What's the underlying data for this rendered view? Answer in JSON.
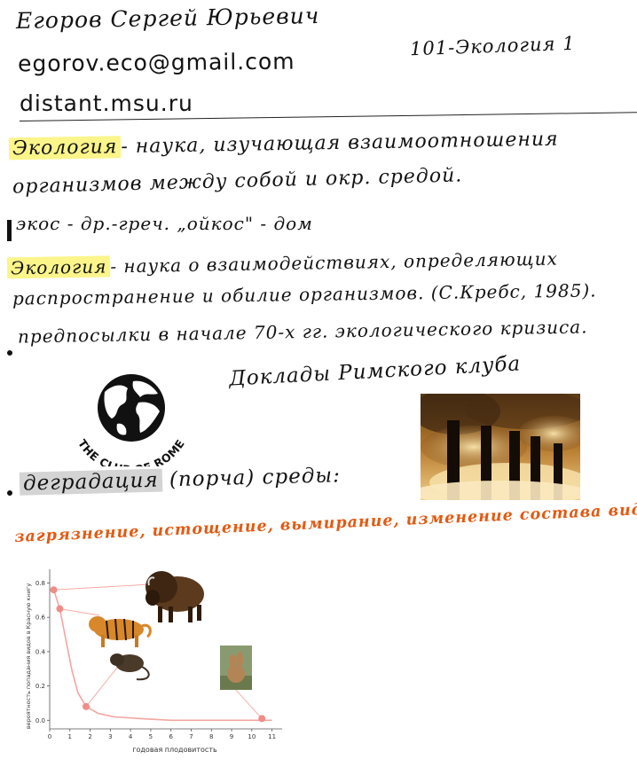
{
  "header": {
    "author": "Егоров Сергей Юрьевич",
    "email": "egorov.eco@gmail.com",
    "site": "distant.msu.ru",
    "course": "101-Экология 1"
  },
  "notes": {
    "term1": "Экология",
    "def1_line1": "- наука, изучающая взаимоотношения",
    "def1_line2": "организмов между собой и окр. средой.",
    "etymology": "экос - др.-греч. „ойкос\" - дом",
    "term2": "Экология",
    "def2_line1": "- наука о взаимодействиях, определяющих",
    "def2_line2": "распространение и обилие организмов. (С.Кребс, 1985).",
    "bullet1": "предпосылки в начале 70-х гг. экологического кризиса.",
    "report": "Доклады Римского клуба",
    "term3": "деградация",
    "term3_paren": "(порча) среды:",
    "causes": "загрязнение, истощение, вымирание, изменение состава видов"
  },
  "logo": {
    "text": "THE CLUB OF ROME"
  },
  "chart_data": {
    "type": "scatter",
    "title": "",
    "xlabel": "годовая плодовитость",
    "ylabel": "вероятность попадания видов в Красную книгу",
    "xlim": [
      0,
      11.5
    ],
    "ylim": [
      -0.05,
      0.88
    ],
    "xticks": [
      0,
      1,
      2,
      3,
      4,
      5,
      6,
      7,
      8,
      9,
      10,
      11
    ],
    "yticks": [
      0.0,
      0.2,
      0.4,
      0.6,
      0.8
    ],
    "points": [
      {
        "x": 0.2,
        "y": 0.76
      },
      {
        "x": 0.5,
        "y": 0.65
      },
      {
        "x": 1.8,
        "y": 0.08
      },
      {
        "x": 10.5,
        "y": 0.01
      }
    ],
    "curve": [
      {
        "x": 0.2,
        "y": 0.76
      },
      {
        "x": 0.5,
        "y": 0.65
      },
      {
        "x": 0.8,
        "y": 0.47
      },
      {
        "x": 1.1,
        "y": 0.29
      },
      {
        "x": 1.4,
        "y": 0.16
      },
      {
        "x": 1.8,
        "y": 0.08
      },
      {
        "x": 2.4,
        "y": 0.04
      },
      {
        "x": 3.2,
        "y": 0.02
      },
      {
        "x": 4.5,
        "y": 0.01
      },
      {
        "x": 6,
        "y": 0.0
      },
      {
        "x": 11,
        "y": 0.0
      }
    ],
    "grid": false,
    "colors": {
      "curve": "#f4a5a0",
      "points": "#f08d86",
      "axis": "#555555"
    }
  }
}
